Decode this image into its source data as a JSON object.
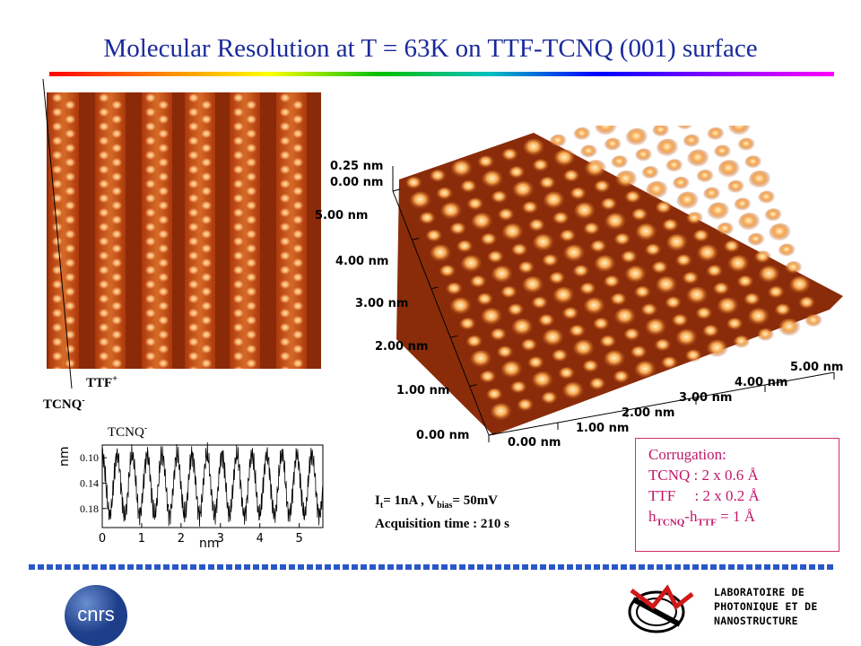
{
  "title": "Molecular Resolution at T = 63K on TTF-TCNQ (001) surface",
  "stm_2d": {
    "label_ttf": "TTF",
    "label_ttf_sup": "+",
    "label_tcnq": "TCNQ",
    "label_tcnq_sup": "-"
  },
  "stm_3d": {
    "z_labels": [
      "0.25 nm",
      "0.00 nm"
    ],
    "y_axis_labels": [
      "5.00 nm",
      "4.00 nm",
      "3.00 nm",
      "2.00 nm",
      "1.00 nm",
      "0.00 nm"
    ],
    "x_axis_labels": [
      "0.00 nm",
      "1.00 nm",
      "2.00 nm",
      "3.00 nm",
      "4.00 nm",
      "5.00 nm"
    ]
  },
  "profile": {
    "top_label": "TCNQ",
    "top_label_sup": "-",
    "ylabel": "nm",
    "xlabel": "nm",
    "y_ticks": [
      "0.18",
      "0.14",
      "0.10"
    ],
    "x_ticks": [
      "0",
      "1",
      "2",
      "3",
      "4",
      "5"
    ]
  },
  "chart_data": {
    "type": "line",
    "xlabel": "nm",
    "ylabel": "nm",
    "xlim": [
      0,
      5.6
    ],
    "ylim": [
      0.07,
      0.2
    ],
    "x_ticks": [
      0,
      1,
      2,
      3,
      4,
      5
    ],
    "y_ticks": [
      0.1,
      0.14,
      0.18
    ],
    "series": [
      {
        "period_nm": 0.38,
        "min": 0.09,
        "max": 0.185
      }
    ]
  },
  "conditions": {
    "line1_i": "I",
    "line1_i_sub": "t",
    "line1_a": "= 1nA , V",
    "line1_v_sub": "bias",
    "line1_b": "= 50mV",
    "line2": "Acquisition time : 210 s"
  },
  "corrugation": {
    "title": "Corrugation:",
    "tcnq": "TCNQ : 2 x 0.6 Å",
    "ttf": "TTF     : 2 x 0.2 Å",
    "h1": "h",
    "h1_sub": "TCNQ",
    "h2": "-h",
    "h2_sub": "TTF",
    "h_value": " = 1 Å"
  },
  "footer": {
    "lab_line1": "LABORATOIRE DE",
    "lab_line2": "PHOTONIQUE ET DE",
    "lab_line3": "NANOSTRUCTURE",
    "cnrs_text": "cnrs"
  },
  "colors": {
    "title": "#1a2a9a",
    "corrugation": "#c0186a",
    "dots": "#2a57c8",
    "stm_dark": "#6a1e06",
    "stm_light": "#ffe0a0"
  }
}
